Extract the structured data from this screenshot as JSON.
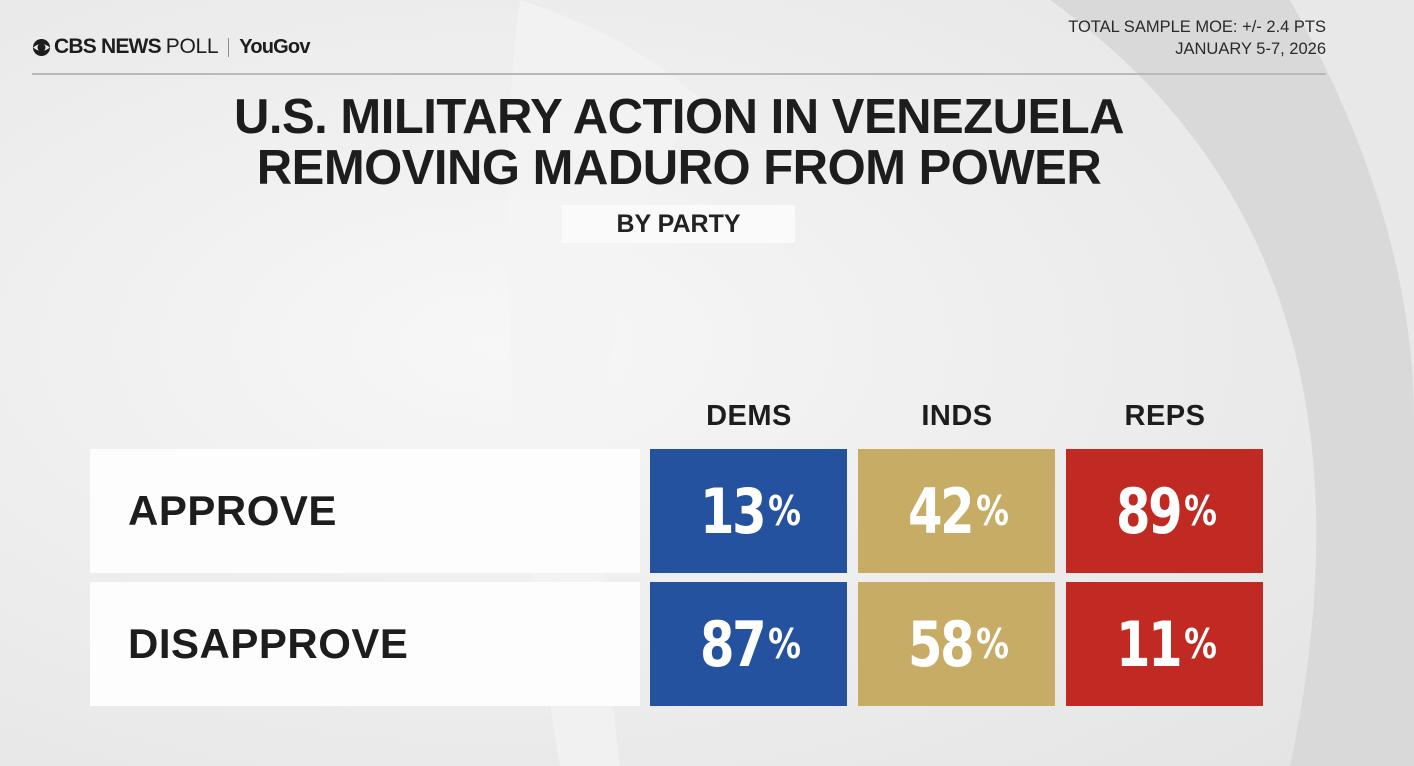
{
  "brand": {
    "name": "CBS NEWS",
    "poll": "POLL",
    "partner": "YouGov",
    "icon": "cbs-eye-icon"
  },
  "meta": {
    "moe": "TOTAL SAMPLE MOE: +/-  2.4 PTS",
    "dates": "JANUARY 5-7, 2026"
  },
  "title_line1": "U.S. MILITARY ACTION IN VENEZUELA",
  "title_line2": "REMOVING MADURO FROM POWER",
  "subtitle": "BY PARTY",
  "colors": {
    "dems": "#24529e",
    "inds": "#c6ac64",
    "reps": "#c12a23"
  },
  "chart_data": {
    "type": "table",
    "title": "U.S. MILITARY ACTION IN VENEZUELA REMOVING MADURO FROM POWER",
    "subtitle": "BY PARTY",
    "columns": [
      "DEMS",
      "INDS",
      "REPS"
    ],
    "rows": [
      {
        "label": "APPROVE",
        "values": [
          13,
          42,
          89
        ]
      },
      {
        "label": "DISAPPROVE",
        "values": [
          87,
          58,
          11
        ]
      }
    ],
    "unit": "%"
  }
}
